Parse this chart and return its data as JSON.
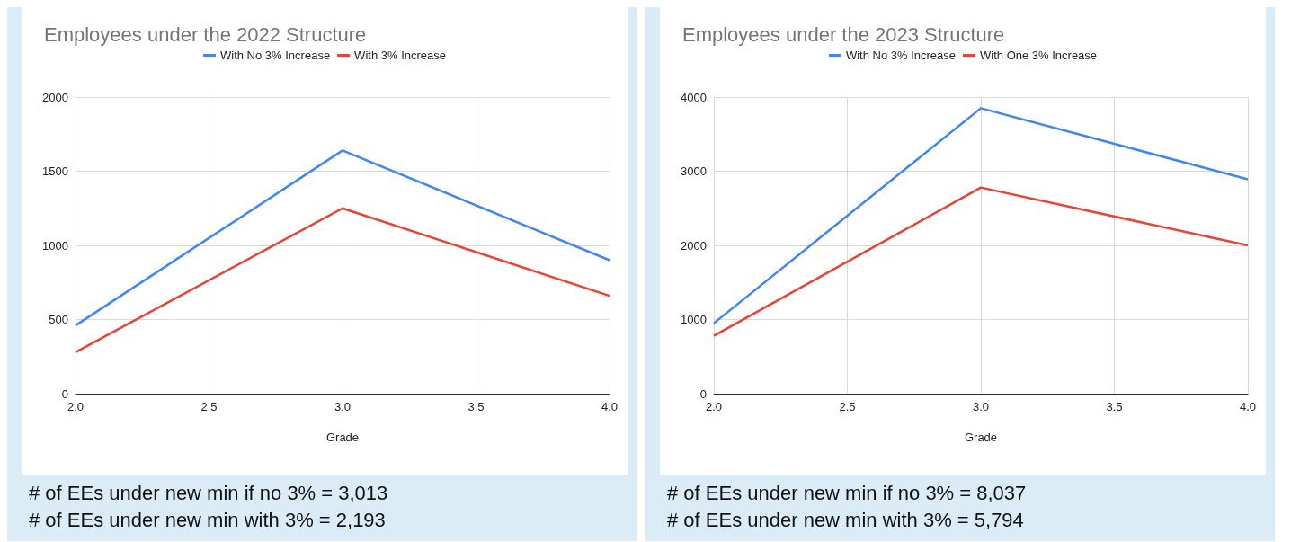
{
  "chart_data": [
    {
      "type": "line",
      "title": "Employees under the 2022 Structure",
      "xlabel": "Grade",
      "x": [
        2,
        3,
        4
      ],
      "series": [
        {
          "name": "With No 3% Increase",
          "color": "#4285f4",
          "values": [
            460,
            1640,
            900
          ]
        },
        {
          "name": "With 3% Increase",
          "color": "#ea4335",
          "values": [
            280,
            1250,
            660
          ]
        }
      ],
      "xlim": [
        2,
        4
      ],
      "xticks": [
        {
          "value": 2,
          "label": "2.0"
        },
        {
          "value": 2.5,
          "label": "2.5"
        },
        {
          "value": 3,
          "label": "3.0"
        },
        {
          "value": 3.5,
          "label": "3.5"
        },
        {
          "value": 4,
          "label": "4.0"
        }
      ],
      "ylim": [
        0,
        2000
      ],
      "yticks": [
        0,
        500,
        1000,
        1500,
        2000
      ],
      "grid": true,
      "legend": "top",
      "marker": "none",
      "annotations": [
        "# of EEs under new min if no 3% = 3,013",
        "# of EEs under new min with 3% = 2,193"
      ]
    },
    {
      "type": "line",
      "title": "Employees under the 2023 Structure",
      "xlabel": "Grade",
      "x": [
        2,
        3,
        4
      ],
      "series": [
        {
          "name": "With No 3% Increase",
          "color": "#4285f4",
          "values": [
            950,
            3850,
            2890
          ]
        },
        {
          "name": "With One 3% Increase",
          "color": "#ea4335",
          "values": [
            780,
            2780,
            2000
          ]
        }
      ],
      "xlim": [
        2,
        4
      ],
      "xticks": [
        {
          "value": 2,
          "label": "2.0"
        },
        {
          "value": 2.5,
          "label": "2.5"
        },
        {
          "value": 3,
          "label": "3.0"
        },
        {
          "value": 3.5,
          "label": "3.5"
        },
        {
          "value": 4,
          "label": "4.0"
        }
      ],
      "ylim": [
        0,
        4000
      ],
      "yticks": [
        0,
        1000,
        2000,
        3000,
        4000
      ],
      "grid": true,
      "legend": "top",
      "marker": "none",
      "annotations": [
        "# of EEs under new min if no 3% = 8,037",
        "# of EEs under new min with 3% = 5,794"
      ]
    }
  ]
}
